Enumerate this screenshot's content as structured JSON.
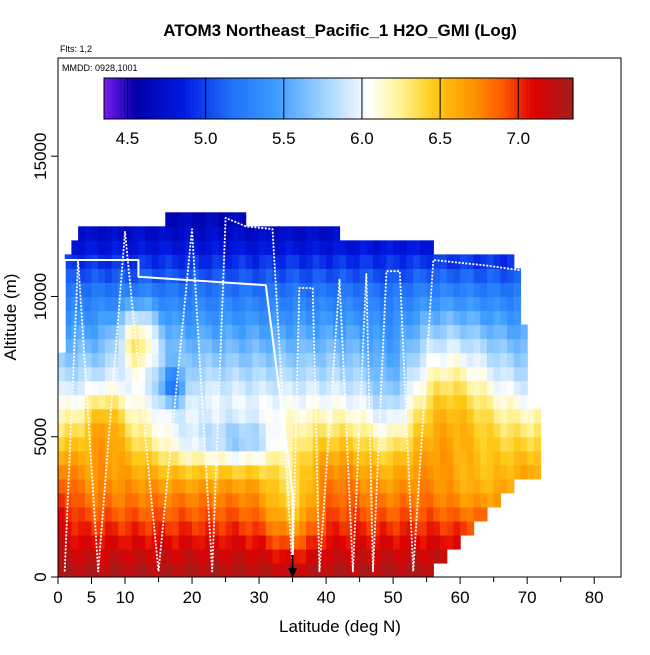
{
  "chart_data": {
    "type": "heatmap",
    "title": "ATOM3 Northeast_Pacific_1 H2O_GMI (Log)",
    "flights_label": "Flts: 1,2",
    "dates_label": "MMDD: 0928,1001",
    "xlabel": "Latitude (deg N)",
    "ylabel": "Altitude (m)",
    "xlim": [
      0,
      84
    ],
    "ylim": [
      0,
      18500
    ],
    "x_ticks": [
      0,
      5,
      10,
      20,
      30,
      40,
      50,
      60,
      70,
      80
    ],
    "x_tick_labels": [
      "0",
      "5",
      "10",
      "20",
      "30",
      "40",
      "50",
      "60",
      "70",
      "80"
    ],
    "x_minor_ticks": [
      15,
      25,
      35,
      45,
      55,
      65,
      75
    ],
    "y_ticks": [
      0,
      5000,
      10000,
      15000
    ],
    "y_tick_labels": [
      "0",
      "5000",
      "10000",
      "15000"
    ],
    "colorbar": {
      "range": [
        4.35,
        7.35
      ],
      "ticks": [
        4.5,
        5.0,
        5.5,
        6.0,
        6.5,
        7.0
      ],
      "tick_labels": [
        "4.5",
        "5.0",
        "5.5",
        "6.0",
        "6.5",
        "7.0"
      ],
      "colors": [
        "#7a1cf0",
        "#0000a8",
        "#0018e0",
        "#1e6ef8",
        "#3c9cff",
        "#9ed2ff",
        "#ffffff",
        "#fff290",
        "#ffcc1a",
        "#ff9600",
        "#ff5a00",
        "#e00000",
        "#a01e1e"
      ],
      "stops": [
        4.35,
        4.55,
        4.85,
        5.15,
        5.45,
        5.75,
        6.05,
        6.25,
        6.45,
        6.7,
        6.9,
        7.1,
        7.35
      ]
    },
    "grid": {
      "lat_step": 1,
      "alt_step": 500,
      "columns": [
        {
          "lat": 0,
          "top": 8000
        },
        {
          "lat": 1,
          "top": 11300
        },
        {
          "lat": 2,
          "top": 12000
        },
        {
          "lat": 5,
          "top": 12100
        },
        {
          "lat": 9,
          "top": 12500
        },
        {
          "lat": 15,
          "top": 12400
        },
        {
          "lat": 18,
          "top": 13000
        },
        {
          "lat": 24,
          "top": 12700
        },
        {
          "lat": 28,
          "top": 12500
        },
        {
          "lat": 38,
          "top": 12100
        },
        {
          "lat": 50,
          "top": 11800
        },
        {
          "lat": 60,
          "top": 11300
        },
        {
          "lat": 68,
          "top": 11000
        },
        {
          "lat": 69,
          "top": 9000
        },
        {
          "lat": 70,
          "top": 6500
        },
        {
          "lat": 71,
          "top": 5800
        },
        {
          "lat": 72,
          "top": 4000
        }
      ],
      "bottom_limit": [
        {
          "lat": 55,
          "bottom": 0
        },
        {
          "lat": 56,
          "bottom": 500
        },
        {
          "lat": 58,
          "bottom": 1000
        },
        {
          "lat": 60,
          "bottom": 1500
        },
        {
          "lat": 62,
          "bottom": 2000
        },
        {
          "lat": 64,
          "bottom": 2500
        },
        {
          "lat": 66,
          "bottom": 3000
        },
        {
          "lat": 68,
          "bottom": 3500
        }
      ]
    },
    "value_model": {
      "profile": [
        {
          "alt": 0,
          "val": 7.3
        },
        {
          "alt": 1000,
          "val": 7.15
        },
        {
          "alt": 2000,
          "val": 6.95
        },
        {
          "alt": 3000,
          "val": 6.75
        },
        {
          "alt": 4000,
          "val": 6.6
        },
        {
          "alt": 5000,
          "val": 6.35
        },
        {
          "alt": 6000,
          "val": 6.1
        },
        {
          "alt": 7000,
          "val": 5.85
        },
        {
          "alt": 8000,
          "val": 5.65
        },
        {
          "alt": 9000,
          "val": 5.45
        },
        {
          "alt": 10000,
          "val": 5.25
        },
        {
          "alt": 11000,
          "val": 5.0
        },
        {
          "alt": 12000,
          "val": 4.75
        },
        {
          "alt": 13000,
          "val": 4.6
        }
      ],
      "anomalies": [
        {
          "lat": 12,
          "alt": 8500,
          "dlat": 3,
          "dalt": 1200,
          "amp": 0.75
        },
        {
          "lat": 7,
          "alt": 5500,
          "dlat": 3,
          "dalt": 1300,
          "amp": 0.4
        },
        {
          "lat": 17,
          "alt": 6800,
          "dlat": 2,
          "dalt": 700,
          "amp": -0.7
        },
        {
          "lat": 20,
          "alt": 4800,
          "dlat": 6,
          "dalt": 1100,
          "amp": -0.4
        },
        {
          "lat": 28,
          "alt": 4800,
          "dlat": 5,
          "dalt": 900,
          "amp": -0.6
        },
        {
          "lat": 35,
          "alt": 2800,
          "dlat": 4,
          "dalt": 1800,
          "amp": -0.45
        },
        {
          "lat": 50,
          "alt": 6500,
          "dlat": 4,
          "dalt": 2500,
          "amp": -0.35
        },
        {
          "lat": 58,
          "alt": 6500,
          "dlat": 7,
          "dalt": 3000,
          "amp": 0.45
        },
        {
          "lat": 62,
          "alt": 3500,
          "dlat": 6,
          "dalt": 1500,
          "amp": -0.25
        },
        {
          "lat": 40,
          "alt": 3500,
          "dlat": 5,
          "dalt": 1500,
          "amp": 0.15
        },
        {
          "lat": 1,
          "alt": 3000,
          "dlat": 2,
          "dalt": 1500,
          "amp": 0.2
        }
      ]
    },
    "flight_tracks": [
      {
        "name": "flight-1",
        "points": [
          [
            1,
            8000
          ],
          [
            1,
            11300
          ],
          [
            12,
            11300
          ],
          [
            12,
            10700
          ],
          [
            31,
            10400
          ],
          [
            35,
            3000
          ],
          [
            35,
            200
          ]
        ]
      },
      {
        "name": "flight-2",
        "points": [
          [
            1,
            200
          ],
          [
            3,
            11300
          ],
          [
            6,
            200
          ],
          [
            10,
            12300
          ],
          [
            15,
            200
          ],
          [
            20,
            12400
          ],
          [
            23,
            200
          ],
          [
            25,
            12800
          ],
          [
            28,
            12500
          ],
          [
            32,
            12400
          ],
          [
            35,
            200
          ],
          [
            36,
            10300
          ],
          [
            38,
            10300
          ],
          [
            39,
            200
          ],
          [
            42,
            10600
          ],
          [
            44,
            200
          ],
          [
            46,
            10800
          ],
          [
            47,
            200
          ],
          [
            49,
            10900
          ],
          [
            51,
            10900
          ],
          [
            53,
            200
          ],
          [
            56,
            11300
          ],
          [
            64,
            11100
          ],
          [
            70,
            10900
          ],
          [
            70,
            9500
          ]
        ]
      }
    ],
    "marker": {
      "lat": 35,
      "alt": 0,
      "label": "arrow"
    }
  }
}
